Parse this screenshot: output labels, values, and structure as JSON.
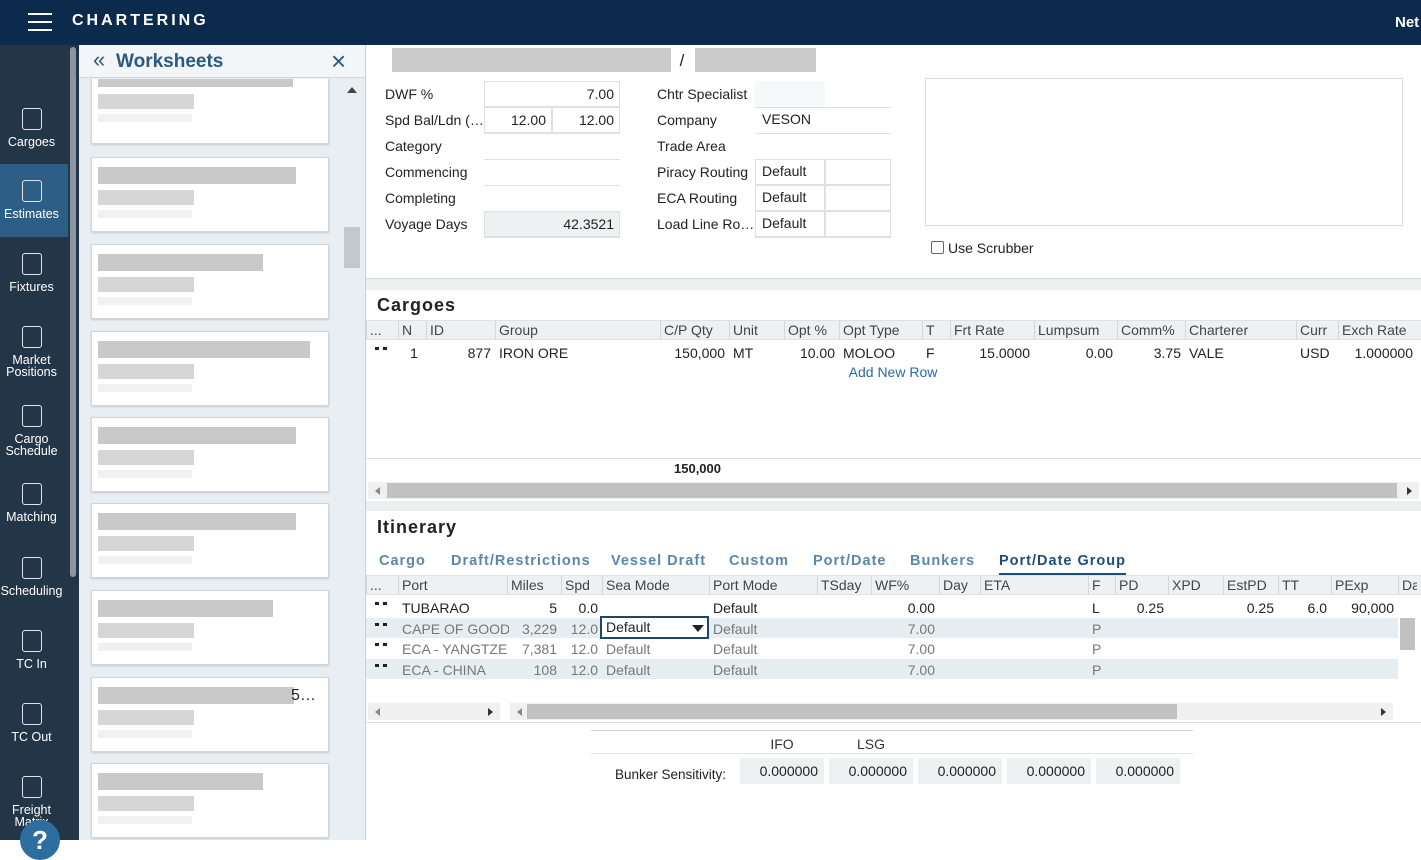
{
  "header": {
    "title": "CHARTERING",
    "user": "Net"
  },
  "nav": [
    {
      "label": "Cargoes"
    },
    {
      "label": "Estimates",
      "active": true
    },
    {
      "label": "Fixtures"
    },
    {
      "label": "Market Positions"
    },
    {
      "label": "Cargo Schedule"
    },
    {
      "label": "Matching"
    },
    {
      "label": "Scheduling"
    },
    {
      "label": "TC In"
    },
    {
      "label": "TC Out"
    },
    {
      "label": "Freight Matrix"
    }
  ],
  "help": "?",
  "worksheets": {
    "title": "Worksheets",
    "card_text": "5…"
  },
  "title_separator": "/",
  "form": {
    "left": [
      {
        "label": "DWF %",
        "values": [
          "7.00"
        ]
      },
      {
        "label": "Spd Bal/Ldn (…",
        "values": [
          "12.00",
          "12.00"
        ]
      },
      {
        "label": "Category"
      },
      {
        "label": "Commencing"
      },
      {
        "label": "Completing"
      },
      {
        "label": "Voyage Days",
        "values": [
          "42.3521"
        ]
      }
    ],
    "right": [
      {
        "label": "Chtr Specialist"
      },
      {
        "label": "Company",
        "value": "VESON"
      },
      {
        "label": "Trade Area"
      },
      {
        "label": "Piracy Routing",
        "value": "Default"
      },
      {
        "label": "ECA Routing",
        "value": "Default"
      },
      {
        "label": "Load Line Ro…",
        "value": "Default"
      }
    ],
    "scrubber": "Use Scrubber"
  },
  "cargoes": {
    "title": "Cargoes",
    "columns": [
      "...",
      "N",
      "ID",
      "Group",
      "C/P Qty",
      "Unit",
      "Opt %",
      "Opt Type",
      "T",
      "Frt Rate",
      "Lumpsum",
      "Comm%",
      "Charterer",
      "Curr",
      "Exch Rate"
    ],
    "rows": [
      [
        null,
        "1",
        "877",
        "IRON ORE",
        "150,000",
        "MT",
        "10.00",
        "MOLOO",
        "F",
        "15.0000",
        "0.00",
        "3.75",
        "VALE",
        "USD",
        "1.000000"
      ]
    ],
    "add_row": "Add New Row",
    "total": "150,000"
  },
  "itinerary": {
    "title": "Itinerary",
    "tabs": [
      "Cargo",
      "Draft/Restrictions",
      "Vessel Draft",
      "Custom",
      "Port/Date",
      "Bunkers",
      "Port/Date Group"
    ],
    "active_tab": 6,
    "columns": [
      "...",
      "Port",
      "Miles",
      "Spd",
      "Sea Mode",
      "Port Mode",
      "TSday",
      "WF%",
      "Day",
      "ETA",
      "F",
      "PD",
      "XPD",
      "EstPD",
      "TT",
      "PExp",
      "Da"
    ],
    "rows": [
      [
        null,
        "TUBARAO",
        "5",
        "0.0",
        null,
        "Default",
        null,
        "0.00",
        null,
        null,
        "L",
        "0.25",
        null,
        "0.25",
        "6.0",
        "90,000",
        null
      ],
      [
        null,
        "CAPE OF GOOD",
        "3,229",
        "12.0",
        "Default",
        "Default",
        null,
        "7.00",
        null,
        null,
        "P",
        null,
        null,
        null,
        null,
        null,
        null
      ],
      [
        null,
        "ECA - YANGTZE",
        "7,381",
        "12.0",
        "Default",
        "Default",
        null,
        "7.00",
        null,
        null,
        "P",
        null,
        null,
        null,
        null,
        null,
        null
      ],
      [
        null,
        "ECA - CHINA",
        "108",
        "12.0",
        "Default",
        "Default",
        null,
        "7.00",
        null,
        null,
        "P",
        null,
        null,
        null,
        null,
        null,
        null
      ]
    ]
  },
  "bunker": {
    "label": "Bunker Sensitivity:",
    "headers": [
      "IFO",
      "LSG"
    ],
    "values": [
      "0.000000",
      "0.000000",
      "0.000000",
      "0.000000",
      "0.000000"
    ]
  }
}
